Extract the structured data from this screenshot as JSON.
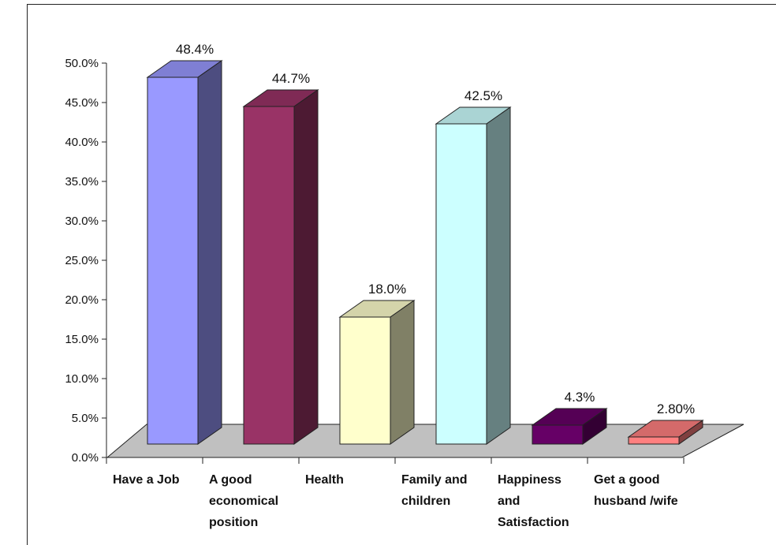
{
  "chart_data": {
    "type": "bar",
    "categories": [
      [
        "Have a Job"
      ],
      [
        "A good",
        "economical",
        "position"
      ],
      [
        "Health"
      ],
      [
        "Family and",
        "children"
      ],
      [
        "Happiness",
        "and",
        "Satisfaction"
      ],
      [
        "Get a good",
        "husband /wife"
      ]
    ],
    "values": [
      48.4,
      44.7,
      18.0,
      42.5,
      4.3,
      2.8
    ],
    "data_labels": [
      "48.4%",
      "44.7%",
      "18.0%",
      "42.5%",
      "4.3%",
      "2.80%"
    ],
    "y_ticks": [
      "0.0%",
      "5.0%",
      "10.0%",
      "15.0%",
      "20.0%",
      "25.0%",
      "30.0%",
      "35.0%",
      "40.0%",
      "45.0%",
      "50.0%"
    ],
    "ylim": [
      0,
      50
    ],
    "grid": false,
    "style": "3d-column",
    "colors": {
      "front": [
        "#9999ff",
        "#993366",
        "#ffffcc",
        "#ccffff",
        "#660066",
        "#ff8080"
      ],
      "top": [
        "#7f7fd4",
        "#7f2a55",
        "#d4d4aa",
        "#aad4d4",
        "#550055",
        "#d46a6a"
      ],
      "side": [
        "#4d4d80",
        "#4d1a33",
        "#808066",
        "#668080",
        "#330033",
        "#804040"
      ],
      "floor": "#c0c0c0"
    }
  }
}
